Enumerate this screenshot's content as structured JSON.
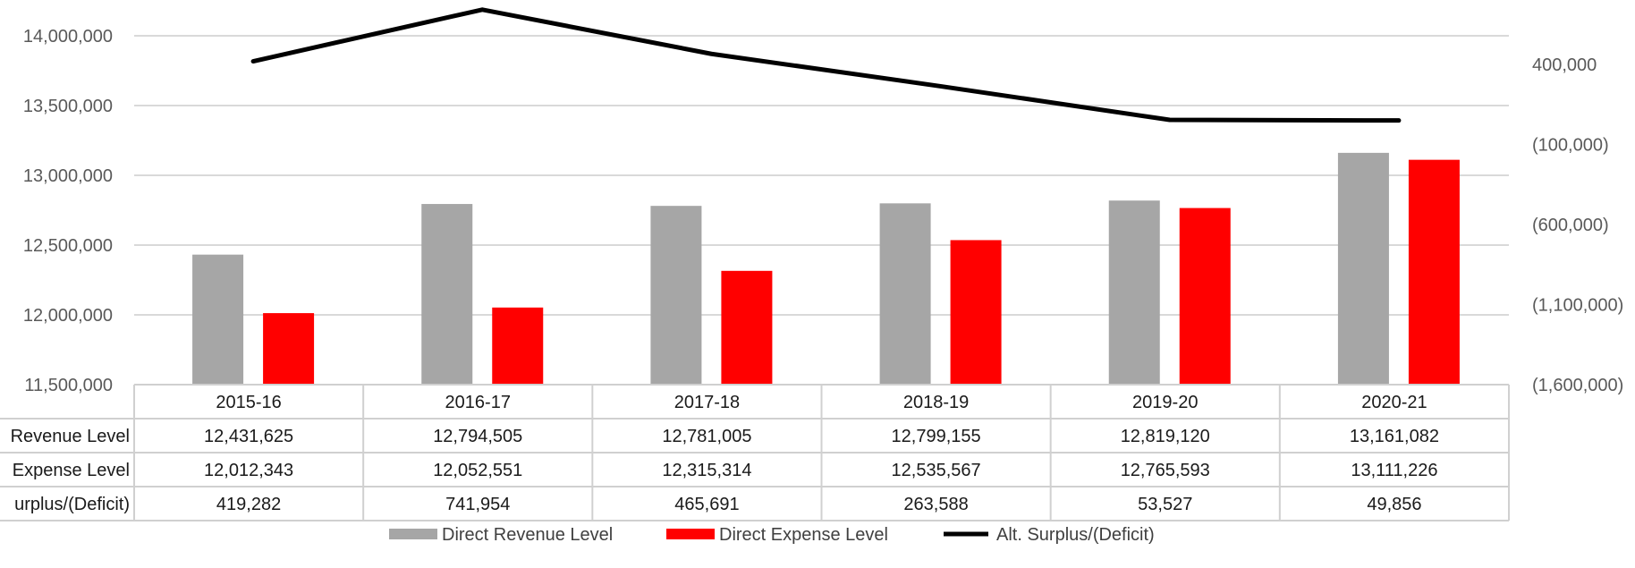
{
  "chart_data": {
    "type": "bar",
    "categories": [
      "2015-16",
      "2016-17",
      "2017-18",
      "2018-19",
      "2019-20",
      "2020-21"
    ],
    "series": [
      {
        "name": "Direct Revenue Level",
        "type": "bar",
        "axis": "left",
        "color": "#a6a6a6",
        "values": [
          12431625,
          12794505,
          12781005,
          12799155,
          12819120,
          13161082
        ],
        "table_values": [
          "12,431,625",
          "12,794,505",
          "12,781,005",
          "12,799,155",
          "12,819,120",
          "13,161,082"
        ]
      },
      {
        "name": "Direct Expense Level",
        "type": "bar",
        "axis": "left",
        "color": "#ff0000",
        "values": [
          12012343,
          12052551,
          12315314,
          12535567,
          12765593,
          13111226
        ],
        "table_values": [
          "12,012,343",
          "12,052,551",
          "12,315,314",
          "12,535,567",
          "12,765,593",
          "13,111,226"
        ]
      },
      {
        "name": "Alt. Surplus/(Deficit)",
        "type": "line",
        "axis": "right",
        "color": "#000000",
        "values": [
          419282,
          741954,
          465691,
          263588,
          53527,
          49856
        ],
        "table_values": [
          "419,282",
          "741,954",
          "465,691",
          "263,588",
          "53,527",
          "49,856"
        ]
      }
    ],
    "row_labels": [
      "Revenue Level",
      "Expense Level",
      "urplus/(Deficit)"
    ],
    "y_left": {
      "ylim": [
        11500000,
        14000000
      ],
      "ticks": [
        11500000,
        12000000,
        12500000,
        13000000,
        13500000,
        14000000
      ],
      "tick_labels": [
        "11,500,000",
        "12,000,000",
        "12,500,000",
        "13,000,000",
        "13,500,000",
        "14,000,000"
      ]
    },
    "y_right": {
      "ticks": [
        -1600000,
        -1100000,
        -600000,
        -100000,
        400000
      ],
      "tick_labels": [
        "(1,600,000)",
        "(1,100,000)",
        "(600,000)",
        "(100,000)",
        "400,000"
      ]
    },
    "grid": true,
    "legend_position": "bottom"
  }
}
